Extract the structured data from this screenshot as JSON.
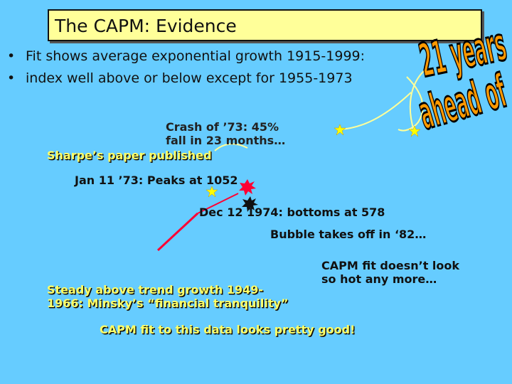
{
  "title": "The CAPM: Evidence",
  "bullets": [
    "Fit shows average exponential growth 1915-1999:",
    "index well above or below except for 1955-1973"
  ],
  "wordart": {
    "line1": "21 years",
    "line2": "ahead of"
  },
  "annotations": {
    "crash_line1": "Crash of ’73: 45%",
    "crash_line2": "fall in 23 months…",
    "sharpe": "Sharpe’s paper published",
    "peak": "Jan 11 ’73: Peaks at 1052",
    "bottom": "Dec 12 1974: bottoms at 578",
    "bubble": "Bubble takes off in ‘82…",
    "capm_hot_line1": "CAPM fit doesn’t look",
    "capm_hot_line2": "so hot any more…",
    "steady_line1": "Steady above trend growth 1949-",
    "steady_line2": "1966: Minsky’s “financial tranquility”",
    "capm_good": "CAPM fit to this data looks pretty good!"
  },
  "colors": {
    "background": "#66ccff",
    "title_box": "#ffff99",
    "wordart": "#ff9900",
    "highlight_text": "#ffff66",
    "star": "#ffff00",
    "burst_red": "#ff0033",
    "line_red": "#ff0033",
    "connector": "#ffff99"
  }
}
